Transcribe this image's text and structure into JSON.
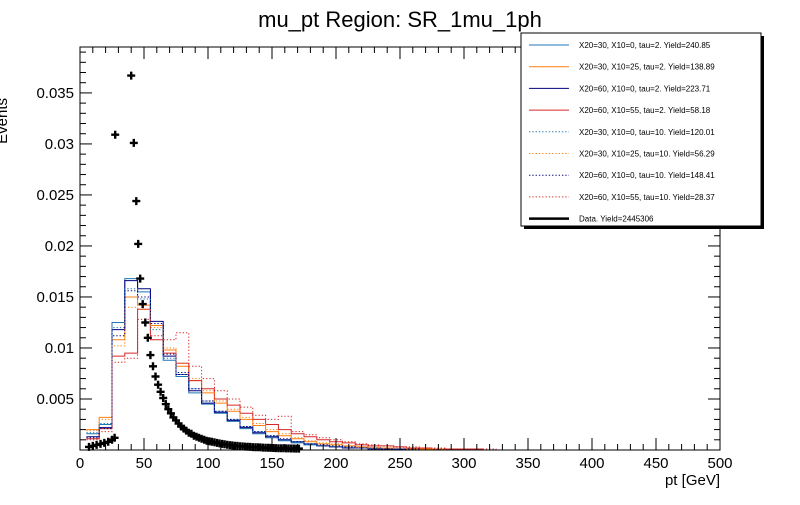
{
  "chart_data": {
    "type": "line",
    "title": "mu_pt Region: SR_1mu_1ph",
    "xlabel": "pt [GeV]",
    "ylabel": "Events",
    "xlim": [
      0,
      500
    ],
    "ylim": [
      0,
      0.0395
    ],
    "x_ticks": [
      0,
      50,
      100,
      150,
      200,
      250,
      300,
      350,
      400,
      450,
      500
    ],
    "x_tick_labels": [
      "0",
      "50",
      "100",
      "150",
      "200",
      "250",
      "300",
      "350",
      "400",
      "450",
      "500"
    ],
    "y_ticks": [
      0.005,
      0.01,
      0.015,
      0.02,
      0.025,
      0.03,
      0.035
    ],
    "y_tick_labels": [
      "0.005",
      "0.01",
      "0.015",
      "0.02",
      "0.025",
      "0.03",
      "0.035"
    ],
    "bin_edges": [
      5,
      15,
      25,
      35,
      45,
      55,
      65,
      75,
      85,
      95,
      105,
      115,
      125,
      135,
      145,
      155,
      165,
      175,
      185,
      195,
      205,
      215,
      225,
      235,
      245,
      255,
      265,
      275,
      285,
      295,
      305,
      315,
      325,
      335,
      345,
      355,
      365,
      375,
      385,
      395,
      405,
      415,
      425,
      435,
      445,
      455,
      465,
      475,
      485,
      495,
      500
    ],
    "series": [
      {
        "name": "X20=30, X10=0, tau=2. Yield=240.85",
        "color": "#1f77b4",
        "style": "solid",
        "values": [
          0.0016,
          0.0025,
          0.0125,
          0.0168,
          0.0155,
          0.0122,
          0.0088,
          0.0072,
          0.0056,
          0.0045,
          0.0036,
          0.0028,
          0.0021,
          0.0016,
          0.0012,
          0.0009,
          0.0007,
          0.0005,
          0.0004,
          0.0003,
          0.0002,
          0.0002,
          0.0001,
          0.0001,
          0.0001,
          0,
          0,
          0,
          0,
          0,
          0,
          0,
          0,
          0,
          0,
          0,
          0,
          0,
          0,
          0,
          0,
          0,
          0,
          0,
          0,
          0,
          0,
          0,
          0
        ]
      },
      {
        "name": "X20=30, X10=25, tau=2. Yield=138.89",
        "color": "#ff7f0e",
        "style": "solid",
        "values": [
          0.002,
          0.0032,
          0.0108,
          0.015,
          0.0142,
          0.0122,
          0.0098,
          0.0082,
          0.0068,
          0.0056,
          0.0046,
          0.0038,
          0.003,
          0.0024,
          0.0018,
          0.0014,
          0.0011,
          0.0008,
          0.0006,
          0.0005,
          0.0004,
          0.0003,
          0.0002,
          0.0002,
          0.0001,
          0.0001,
          0.0001,
          0,
          0,
          0,
          0,
          0,
          0,
          0,
          0,
          0,
          0,
          0,
          0,
          0,
          0,
          0,
          0,
          0,
          0,
          0,
          0,
          0,
          0
        ]
      },
      {
        "name": "X20=60, X10=0, tau=2. Yield=223.71",
        "color": "#00007f",
        "style": "solid",
        "values": [
          0.0013,
          0.0022,
          0.0118,
          0.0166,
          0.0158,
          0.0126,
          0.0092,
          0.0074,
          0.0058,
          0.0046,
          0.0037,
          0.0029,
          0.0022,
          0.0017,
          0.0013,
          0.001,
          0.0008,
          0.0006,
          0.0004,
          0.0003,
          0.0002,
          0.0002,
          0.0001,
          0.0001,
          0.0001,
          0,
          0,
          0,
          0,
          0,
          0,
          0,
          0,
          0,
          0,
          0,
          0,
          0,
          0,
          0,
          0,
          0,
          0,
          0,
          0,
          0,
          0,
          0,
          0
        ]
      },
      {
        "name": "X20=60, X10=55, tau=2. Yield=58.18",
        "color": "#d62728",
        "style": "solid",
        "values": [
          0.0011,
          0.0021,
          0.0092,
          0.0095,
          0.0138,
          0.0108,
          0.0095,
          0.0085,
          0.0068,
          0.006,
          0.005,
          0.0044,
          0.0036,
          0.003,
          0.0025,
          0.002,
          0.0016,
          0.0013,
          0.001,
          0.0008,
          0.0007,
          0.0005,
          0.0004,
          0.0004,
          0.0003,
          0.0002,
          0.0002,
          0.0001,
          0.0001,
          0.0001,
          0.0001,
          0,
          0,
          0,
          0,
          0,
          0,
          0,
          0,
          0,
          0,
          0,
          0,
          0,
          0,
          0,
          0,
          0,
          0
        ]
      },
      {
        "name": "X20=30, X10=0, tau=10. Yield=120.01",
        "color": "#1f77b4",
        "style": "dotted",
        "values": [
          0.0017,
          0.0026,
          0.012,
          0.0158,
          0.0148,
          0.0118,
          0.009,
          0.0074,
          0.006,
          0.0048,
          0.0038,
          0.003,
          0.0023,
          0.0018,
          0.0014,
          0.001,
          0.0008,
          0.0006,
          0.0004,
          0.0003,
          0.0003,
          0.0002,
          0.0001,
          0.0001,
          0.0001,
          0,
          0,
          0,
          0,
          0,
          0,
          0,
          0,
          0,
          0,
          0,
          0,
          0,
          0,
          0,
          0,
          0,
          0,
          0,
          0,
          0,
          0,
          0,
          0
        ]
      },
      {
        "name": "X20=30, X10=25, tau=10. Yield=56.29",
        "color": "#ff7f0e",
        "style": "dotted",
        "values": [
          0.0019,
          0.003,
          0.0102,
          0.014,
          0.0138,
          0.012,
          0.01,
          0.0085,
          0.007,
          0.0058,
          0.0048,
          0.004,
          0.0032,
          0.0026,
          0.002,
          0.0016,
          0.0012,
          0.0009,
          0.0007,
          0.0006,
          0.0004,
          0.0003,
          0.0003,
          0.0002,
          0.0002,
          0.0001,
          0.0001,
          0.0001,
          0,
          0,
          0,
          0,
          0,
          0,
          0,
          0,
          0,
          0,
          0,
          0,
          0,
          0,
          0,
          0,
          0,
          0,
          0,
          0,
          0
        ]
      },
      {
        "name": "X20=60, X10=0, tau=10. Yield=148.41",
        "color": "#00007f",
        "style": "dotted",
        "values": [
          0.0012,
          0.0021,
          0.0112,
          0.0156,
          0.015,
          0.0124,
          0.0094,
          0.0076,
          0.006,
          0.0048,
          0.0038,
          0.003,
          0.0023,
          0.0018,
          0.0014,
          0.0011,
          0.0008,
          0.0006,
          0.0005,
          0.0004,
          0.0003,
          0.0002,
          0.0002,
          0.0001,
          0.0001,
          0.0001,
          0,
          0,
          0,
          0,
          0,
          0,
          0,
          0,
          0,
          0,
          0,
          0,
          0,
          0,
          0,
          0,
          0,
          0,
          0,
          0,
          0,
          0,
          0
        ]
      },
      {
        "name": "X20=60, X10=55, tau=10. Yield=28.37",
        "color": "#d62728",
        "style": "dotted",
        "values": [
          0.001,
          0.0018,
          0.0086,
          0.009,
          0.0128,
          0.0112,
          0.0108,
          0.0115,
          0.0082,
          0.007,
          0.0058,
          0.005,
          0.0042,
          0.0034,
          0.003,
          0.0033,
          0.0018,
          0.0015,
          0.0012,
          0.001,
          0.0008,
          0.0006,
          0.0005,
          0.0004,
          0.0003,
          0.0003,
          0.0002,
          0.0002,
          0.0001,
          0.0001,
          0.0001,
          0.0001,
          0,
          0,
          0,
          0,
          0,
          0,
          0,
          0,
          0,
          0,
          0,
          0,
          0,
          0,
          0,
          0,
          0
        ]
      },
      {
        "name": "Data. Yield=2445306",
        "color": "#000000",
        "style": "markers",
        "points": [
          [
            7,
            0.0003
          ],
          [
            10,
            0.0004
          ],
          [
            13,
            0.0005
          ],
          [
            16,
            0.0006
          ],
          [
            19,
            0.0007
          ],
          [
            22,
            0.0008
          ],
          [
            25,
            0.001
          ],
          [
            27,
            0.0012
          ],
          [
            27.5,
            0.0309
          ],
          [
            40,
            0.0367
          ],
          [
            42,
            0.0301
          ],
          [
            44,
            0.0244
          ],
          [
            45.5,
            0.0202
          ],
          [
            47,
            0.0168
          ],
          [
            49,
            0.0143
          ],
          [
            51,
            0.0125
          ],
          [
            53,
            0.011
          ],
          [
            55,
            0.0093
          ],
          [
            57,
            0.0082
          ],
          [
            59,
            0.0072
          ],
          [
            61,
            0.0064
          ],
          [
            63,
            0.0057
          ],
          [
            65,
            0.0051
          ],
          [
            67,
            0.0045
          ],
          [
            69,
            0.004
          ],
          [
            71,
            0.0036
          ],
          [
            73,
            0.0032
          ],
          [
            75,
            0.0029
          ],
          [
            77,
            0.0026
          ],
          [
            79,
            0.0023
          ],
          [
            81,
            0.0021
          ],
          [
            83,
            0.0019
          ],
          [
            85,
            0.0017
          ],
          [
            87,
            0.0016
          ],
          [
            89,
            0.0014
          ],
          [
            91,
            0.0013
          ],
          [
            93,
            0.0012
          ],
          [
            95,
            0.0011
          ],
          [
            97,
            0.001
          ],
          [
            99,
            0.0009
          ],
          [
            101,
            0.00085
          ],
          [
            103,
            0.0008
          ],
          [
            105,
            0.00075
          ],
          [
            107,
            0.0007
          ],
          [
            109,
            0.00065
          ],
          [
            111,
            0.0006
          ],
          [
            113,
            0.00056
          ],
          [
            115,
            0.00052
          ],
          [
            117,
            0.00048
          ],
          [
            119,
            0.00045
          ],
          [
            121,
            0.00042
          ],
          [
            123,
            0.0004
          ],
          [
            125,
            0.00037
          ],
          [
            127,
            0.00035
          ],
          [
            129,
            0.00033
          ],
          [
            131,
            0.00031
          ],
          [
            133,
            0.0003
          ],
          [
            135,
            0.00028
          ],
          [
            137,
            0.00027
          ],
          [
            139,
            0.00026
          ],
          [
            141,
            0.00025
          ],
          [
            143,
            0.00024
          ],
          [
            145,
            0.00023
          ],
          [
            147,
            0.00022
          ],
          [
            149,
            0.00021
          ],
          [
            151,
            0.0002
          ],
          [
            153,
            0.00019
          ],
          [
            155,
            0.00018
          ],
          [
            157,
            0.00018
          ],
          [
            159,
            0.00017
          ],
          [
            161,
            0.00016
          ],
          [
            163,
            0.00016
          ],
          [
            165,
            0.00015
          ],
          [
            167,
            0.00015
          ],
          [
            169,
            0.00014
          ],
          [
            171,
            0.00014
          ]
        ]
      }
    ],
    "legend": "top-right",
    "grid": false
  }
}
